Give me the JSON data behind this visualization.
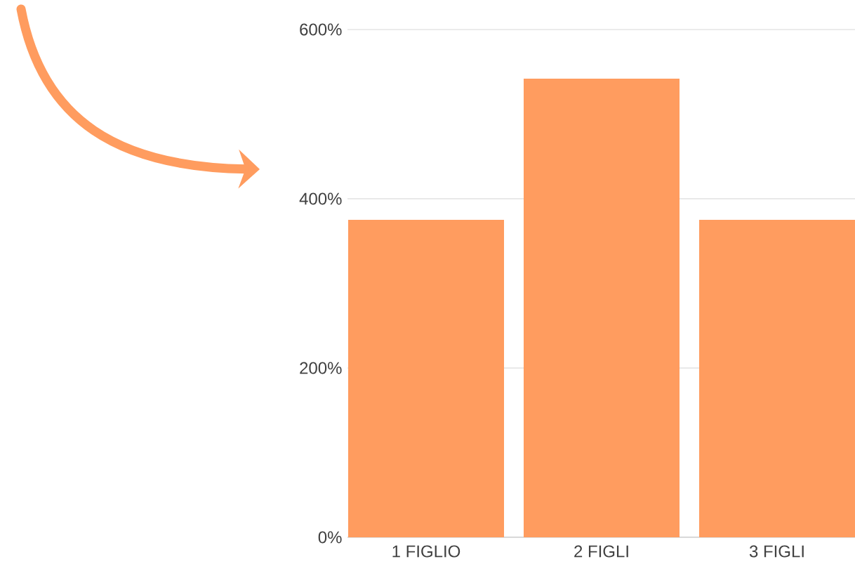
{
  "chart_data": {
    "type": "bar",
    "categories": [
      "1 FIGLIO",
      "2 FIGLI",
      "3 FIGLI"
    ],
    "values": [
      375,
      542,
      375
    ],
    "color": "#ff9c5f",
    "ylim": [
      0,
      600
    ],
    "yticks": [
      {
        "value": 0,
        "label": "0%"
      },
      {
        "value": 200,
        "label": "200%"
      },
      {
        "value": 400,
        "label": "400%"
      },
      {
        "value": 600,
        "label": "600%"
      }
    ],
    "grid": "y"
  }
}
